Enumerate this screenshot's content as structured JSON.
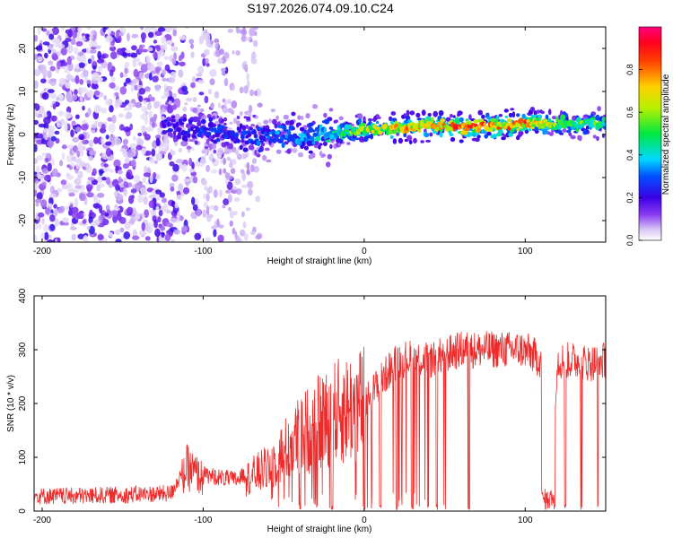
{
  "title": "S197.2026.074.09.10.C24",
  "colors": {
    "snr_line": "#ee2a2a",
    "axis": "#000000",
    "background": "#ffffff"
  },
  "chart_data": [
    {
      "type": "heatmap",
      "name": "spectrogram",
      "xlabel": "Height of straight line (km)",
      "ylabel": "Frequency (Hz)",
      "xlim": [
        -205,
        150
      ],
      "ylim": [
        -25,
        25
      ],
      "xticks": [
        -200,
        -100,
        0,
        100
      ],
      "yticks": [
        -20,
        -10,
        0,
        10,
        20
      ],
      "colorbar": {
        "label": "Normalized spectral amplitude",
        "range": [
          0,
          1
        ],
        "ticks": [
          "0.0",
          "0.2",
          "0.4",
          "0.6",
          "0.8"
        ],
        "tick_values": [
          0.0,
          0.2,
          0.4,
          0.6,
          0.8
        ]
      },
      "ridge": {
        "description_points_x": [
          -120,
          -100,
          -80,
          -60,
          -40,
          -20,
          0,
          20,
          40,
          60,
          80,
          100,
          120,
          150
        ],
        "center_freq_hz": [
          2,
          1,
          0,
          -0.5,
          0,
          0.5,
          1,
          1.5,
          2,
          2,
          2,
          2.5,
          2.5,
          2.5
        ],
        "peak_amplitude": [
          0.25,
          0.3,
          0.3,
          0.35,
          0.4,
          0.5,
          0.7,
          0.8,
          0.9,
          0.95,
          0.9,
          0.9,
          0.7,
          0.6
        ]
      },
      "noise_region_x": [
        -205,
        -120
      ]
    },
    {
      "type": "line",
      "name": "snr",
      "xlabel": "Height of straight line (km)",
      "ylabel": "SNR (10 * v/v)",
      "xlim": [
        -205,
        150
      ],
      "ylim": [
        0,
        400
      ],
      "xticks": [
        -200,
        -100,
        0,
        100
      ],
      "yticks": [
        0,
        100,
        200,
        300,
        400
      ],
      "series": [
        {
          "name": "SNR envelope",
          "x": [
            -205,
            -180,
            -150,
            -120,
            -110,
            -100,
            -80,
            -60,
            -40,
            -20,
            0,
            10,
            20,
            30,
            40,
            60,
            80,
            100,
            110,
            115,
            120,
            130,
            140,
            150
          ],
          "y": [
            20,
            20,
            22,
            25,
            80,
            60,
            50,
            80,
            140,
            180,
            200,
            240,
            280,
            285,
            280,
            300,
            300,
            300,
            280,
            60,
            280,
            280,
            275,
            280
          ]
        }
      ],
      "dropouts_x": [
        -40,
        -30,
        -20,
        0,
        10,
        20,
        30,
        40,
        45,
        50,
        65,
        115,
        118,
        125,
        135,
        145
      ]
    }
  ]
}
